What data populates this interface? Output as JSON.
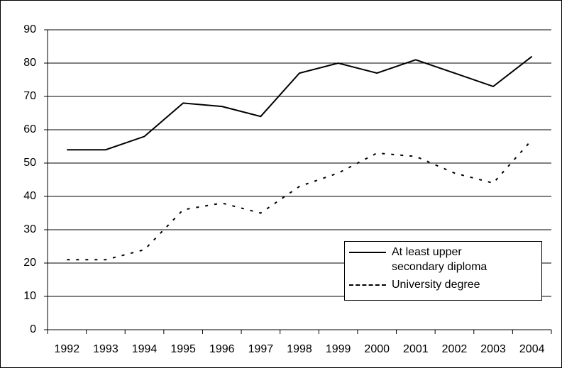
{
  "chart_data": {
    "type": "line",
    "categories": [
      "1992",
      "1993",
      "1994",
      "1995",
      "1996",
      "1997",
      "1998",
      "1999",
      "2000",
      "2001",
      "2002",
      "2003",
      "2004"
    ],
    "series": [
      {
        "name": "At least upper secondary diploma",
        "color": "#000000",
        "dash": "solid",
        "values": [
          54,
          54,
          58,
          68,
          67,
          64,
          77,
          80,
          77,
          81,
          77,
          73,
          82
        ]
      },
      {
        "name": "University degree",
        "color": "#000000",
        "dash": "dashed",
        "values": [
          21,
          21,
          24,
          36,
          38,
          35,
          43,
          47,
          53,
          52,
          47,
          44,
          57
        ]
      }
    ],
    "ylim": [
      0,
      90
    ],
    "yticks": [
      0,
      10,
      20,
      30,
      40,
      50,
      60,
      70,
      80,
      90
    ],
    "grid": true,
    "legend": "lower right"
  }
}
